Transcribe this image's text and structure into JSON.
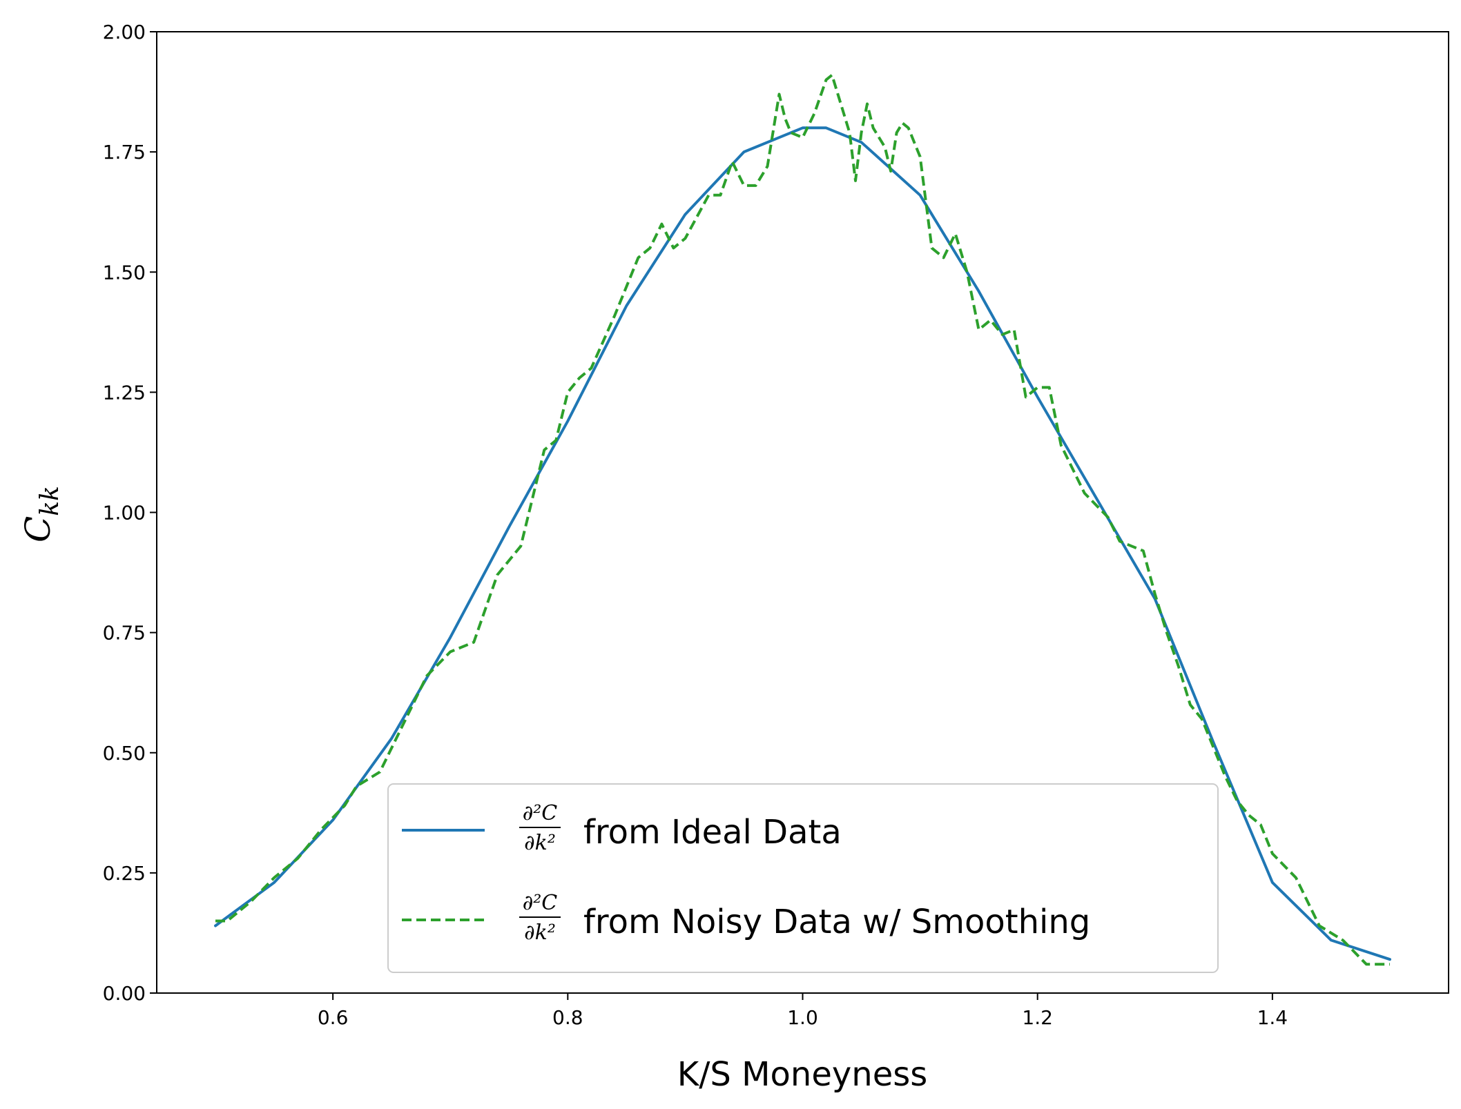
{
  "chart_data": {
    "type": "line",
    "title": "",
    "xlabel": "K/S Moneyness",
    "ylabel": {
      "base": "C",
      "subscript": "kk"
    },
    "xlim": [
      0.45,
      1.55
    ],
    "ylim": [
      0.0,
      2.0
    ],
    "x_ticks": [
      0.6,
      0.8,
      1.0,
      1.2,
      1.4
    ],
    "x_tick_labels": [
      "0.6",
      "0.8",
      "1.0",
      "1.2",
      "1.4"
    ],
    "y_ticks": [
      0.0,
      0.25,
      0.5,
      0.75,
      1.0,
      1.25,
      1.5,
      1.75,
      2.0
    ],
    "y_tick_labels": [
      "0.00",
      "0.25",
      "0.50",
      "0.75",
      "1.00",
      "1.25",
      "1.50",
      "1.75",
      "2.00"
    ],
    "grid": false,
    "legend_position": "lower-center",
    "series": [
      {
        "name": "∂²C/∂k² from Ideal Data",
        "legend": {
          "numerator": "∂²C",
          "denominator": "∂k²",
          "suffix": "from Ideal Data"
        },
        "color": "#1f77b4",
        "style": "solid",
        "x": [
          0.5,
          0.55,
          0.6,
          0.65,
          0.7,
          0.75,
          0.8,
          0.85,
          0.9,
          0.95,
          1.0,
          1.02,
          1.05,
          1.1,
          1.15,
          1.2,
          1.25,
          1.3,
          1.35,
          1.4,
          1.45,
          1.5
        ],
        "y": [
          0.14,
          0.23,
          0.36,
          0.53,
          0.74,
          0.97,
          1.19,
          1.43,
          1.62,
          1.75,
          1.8,
          1.8,
          1.77,
          1.66,
          1.46,
          1.24,
          1.03,
          0.82,
          0.52,
          0.23,
          0.11,
          0.07
        ]
      },
      {
        "name": "∂²C/∂k² from Noisy Data w/ Smoothing",
        "legend": {
          "numerator": "∂²C",
          "denominator": "∂k²",
          "suffix": "from Noisy Data w/ Smoothing"
        },
        "color": "#2ca02c",
        "style": "dashed",
        "x": [
          0.5,
          0.51,
          0.53,
          0.55,
          0.57,
          0.59,
          0.61,
          0.62,
          0.64,
          0.66,
          0.68,
          0.7,
          0.71,
          0.72,
          0.74,
          0.76,
          0.77,
          0.78,
          0.79,
          0.8,
          0.81,
          0.82,
          0.84,
          0.86,
          0.87,
          0.88,
          0.89,
          0.9,
          0.92,
          0.93,
          0.94,
          0.95,
          0.96,
          0.97,
          0.98,
          0.985,
          0.99,
          1.0,
          1.01,
          1.02,
          1.025,
          1.03,
          1.04,
          1.045,
          1.05,
          1.055,
          1.06,
          1.07,
          1.075,
          1.08,
          1.085,
          1.09,
          1.1,
          1.11,
          1.12,
          1.13,
          1.14,
          1.15,
          1.16,
          1.17,
          1.18,
          1.19,
          1.2,
          1.21,
          1.22,
          1.24,
          1.26,
          1.27,
          1.28,
          1.29,
          1.3,
          1.31,
          1.32,
          1.33,
          1.34,
          1.36,
          1.37,
          1.38,
          1.39,
          1.4,
          1.42,
          1.44,
          1.46,
          1.48,
          1.5
        ],
        "y": [
          0.15,
          0.15,
          0.19,
          0.24,
          0.28,
          0.34,
          0.39,
          0.43,
          0.46,
          0.56,
          0.66,
          0.71,
          0.72,
          0.73,
          0.87,
          0.93,
          1.03,
          1.13,
          1.15,
          1.25,
          1.28,
          1.3,
          1.41,
          1.53,
          1.55,
          1.6,
          1.55,
          1.57,
          1.66,
          1.66,
          1.73,
          1.68,
          1.68,
          1.72,
          1.87,
          1.82,
          1.79,
          1.78,
          1.83,
          1.9,
          1.91,
          1.87,
          1.79,
          1.69,
          1.79,
          1.85,
          1.8,
          1.76,
          1.71,
          1.79,
          1.81,
          1.8,
          1.74,
          1.55,
          1.53,
          1.58,
          1.5,
          1.38,
          1.4,
          1.37,
          1.38,
          1.24,
          1.26,
          1.26,
          1.14,
          1.04,
          0.99,
          0.94,
          0.93,
          0.92,
          0.83,
          0.75,
          0.68,
          0.6,
          0.57,
          0.45,
          0.4,
          0.37,
          0.35,
          0.29,
          0.24,
          0.14,
          0.11,
          0.06,
          0.06
        ]
      }
    ]
  }
}
